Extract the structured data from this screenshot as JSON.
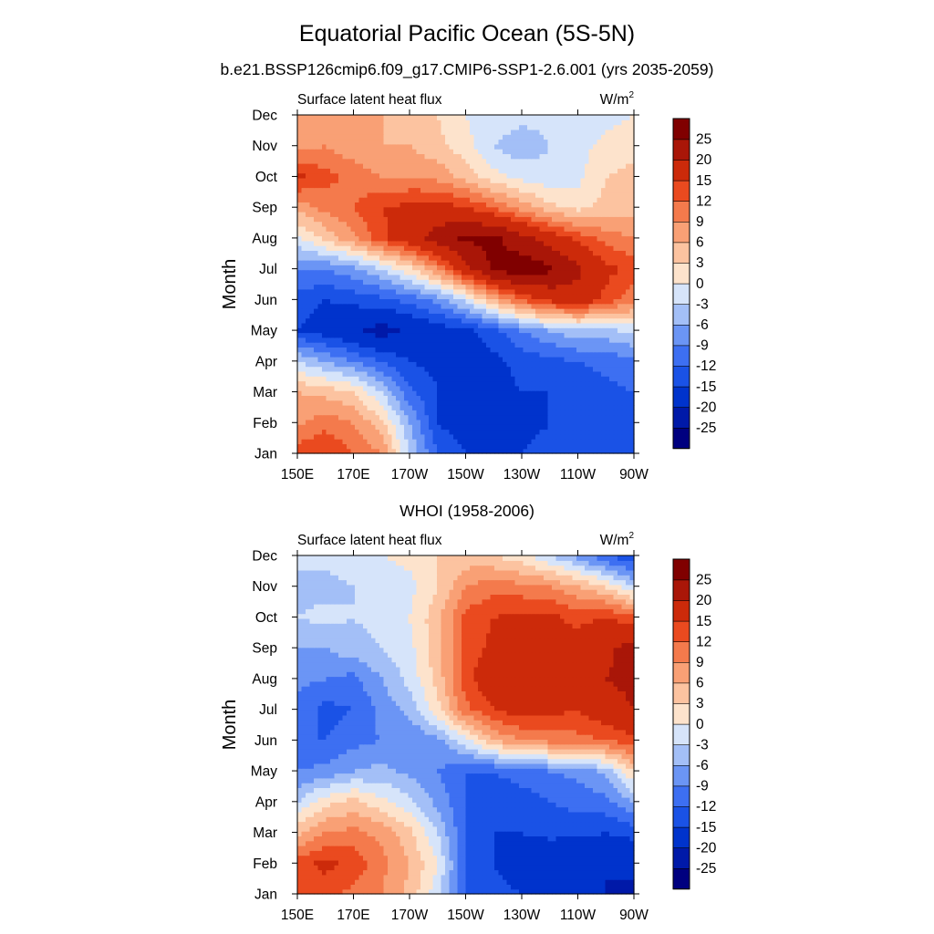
{
  "figure": {
    "title": "Equatorial Pacific Ocean (5S-5N)",
    "subtitle": "b.e21.BSSP126cmip6.f09_g17.CMIP6-SSP1-2.6.001 (yrs 2035-2059)"
  },
  "colors": {
    "palette": [
      "#00007f",
      "#0019a8",
      "#0033cc",
      "#1a52e6",
      "#3d6ff2",
      "#6b95f5",
      "#a3bff7",
      "#d6e4fa",
      "#fde3cc",
      "#fcc3a0",
      "#f9a075",
      "#f47a4c",
      "#ea4a1f",
      "#cc2a0a",
      "#a91608",
      "#800000"
    ]
  },
  "chart_data": [
    {
      "type": "heatmap",
      "title": "",
      "left_label": "Surface latent heat flux",
      "units_label": "W/m",
      "units_superscript": "2",
      "ylabel": "Month",
      "xlabel": "",
      "x_ticks": [
        "150E",
        "170E",
        "170W",
        "150W",
        "130W",
        "110W",
        "90W"
      ],
      "x_lon_range": [
        150,
        270
      ],
      "y_ticks": [
        "Jan",
        "Feb",
        "Mar",
        "Apr",
        "May",
        "Jun",
        "Jul",
        "Aug",
        "Sep",
        "Oct",
        "Nov",
        "Dec"
      ],
      "colorbar_levels": [
        -25,
        -20,
        -15,
        -12,
        -9,
        -6,
        -3,
        0,
        3,
        6,
        9,
        12,
        15,
        20,
        25
      ],
      "colorbar_labels": [
        "-25",
        "-20",
        "-15",
        "-12",
        "-9",
        "-6",
        "-3",
        "0",
        "3",
        "6",
        "9",
        "12",
        "15",
        "20",
        "25"
      ],
      "lon_nodes": [
        150,
        160,
        170,
        180,
        190,
        200,
        210,
        220,
        230,
        240,
        250,
        260,
        270
      ],
      "rows": [
        [
          14,
          15,
          12,
          9,
          -3,
          -12,
          -15,
          -16,
          -15,
          -14,
          -13,
          -14,
          -12
        ],
        [
          8,
          11,
          9,
          4,
          -6,
          -15,
          -17,
          -17,
          -16,
          -15,
          -14,
          -15,
          -14
        ],
        [
          6,
          5,
          3,
          -3,
          -11,
          -15,
          -16,
          -16,
          -15,
          -15,
          -14,
          -13,
          -12
        ],
        [
          -3,
          -6,
          -9,
          -12,
          -15,
          -16,
          -17,
          -16,
          -14,
          -13,
          -12,
          -11,
          -10
        ],
        [
          -15,
          -17,
          -19,
          -22,
          -19,
          -17,
          -16,
          -13,
          -9,
          -6,
          -4,
          -4,
          -2
        ],
        [
          -13,
          -15,
          -14,
          -13,
          -11,
          -8,
          -2,
          6,
          12,
          16,
          18,
          14,
          10
        ],
        [
          -9,
          -9,
          -7,
          -3,
          2,
          9,
          18,
          26,
          28,
          26,
          21,
          16,
          14
        ],
        [
          -1,
          4,
          8,
          14,
          18,
          22,
          26,
          26,
          22,
          18,
          14,
          11,
          9
        ],
        [
          7,
          10,
          12,
          15,
          16,
          17,
          15,
          12,
          8,
          4,
          2,
          4,
          5
        ],
        [
          16,
          13,
          11,
          9,
          9,
          8,
          5,
          1,
          -1,
          -2,
          -1,
          3,
          4
        ],
        [
          8,
          9,
          7,
          6,
          6,
          4,
          1,
          -3,
          -5,
          -3,
          -1,
          1,
          2
        ],
        [
          9,
          8,
          7,
          6,
          4,
          3,
          0,
          -1,
          -2,
          -2,
          -3,
          -1,
          0
        ]
      ]
    },
    {
      "type": "heatmap",
      "title": "WHOI (1958-2006)",
      "left_label": "Surface latent heat flux",
      "units_label": "W/m",
      "units_superscript": "2",
      "ylabel": "Month",
      "xlabel": "",
      "x_ticks": [
        "150E",
        "170E",
        "170W",
        "150W",
        "130W",
        "110W",
        "90W"
      ],
      "x_lon_range": [
        150,
        270
      ],
      "y_ticks": [
        "Jan",
        "Feb",
        "Mar",
        "Apr",
        "May",
        "Jun",
        "Jul",
        "Aug",
        "Sep",
        "Oct",
        "Nov",
        "Dec"
      ],
      "colorbar_levels": [
        -25,
        -20,
        -15,
        -12,
        -9,
        -6,
        -3,
        0,
        3,
        6,
        9,
        12,
        15,
        20,
        25
      ],
      "colorbar_labels": [
        "-25",
        "-20",
        "-15",
        "-12",
        "-9",
        "-6",
        "-3",
        "0",
        "3",
        "6",
        "9",
        "12",
        "15",
        "20",
        "25"
      ],
      "lon_nodes": [
        150,
        160,
        170,
        180,
        190,
        200,
        210,
        220,
        230,
        240,
        250,
        260,
        270
      ],
      "rows": [
        [
          12,
          13,
          11,
          9,
          5,
          -2,
          -12,
          -14,
          -15,
          -16,
          -18,
          -20,
          -22
        ],
        [
          14,
          16,
          14,
          10,
          6,
          0,
          -12,
          -15,
          -17,
          -19,
          -20,
          -20,
          -18
        ],
        [
          5,
          9,
          10,
          8,
          4,
          -3,
          -12,
          -15,
          -15,
          -14,
          -14,
          -15,
          -14
        ],
        [
          -3,
          2,
          4,
          1,
          -2,
          -7,
          -12,
          -15,
          -14,
          -12,
          -11,
          -10,
          -6
        ],
        [
          -9,
          -8,
          -6,
          -5,
          -7,
          -9,
          -12,
          -12,
          -10,
          -9,
          -8,
          -5,
          3
        ],
        [
          -12,
          -12,
          -10,
          -9,
          -9,
          -7,
          -1,
          6,
          9,
          10,
          11,
          12,
          14
        ],
        [
          -10,
          -13,
          -12,
          -8,
          -5,
          2,
          11,
          15,
          17,
          16,
          15,
          18,
          20
        ],
        [
          -8,
          -9,
          -10,
          -6,
          -2,
          4,
          14,
          18,
          19,
          15,
          18,
          20,
          21
        ],
        [
          -6,
          -6,
          -4,
          -3,
          -1,
          5,
          13,
          16,
          18,
          15,
          17,
          19,
          22
        ],
        [
          -3,
          -2,
          -3,
          -2,
          0,
          5,
          13,
          15,
          16,
          16,
          14,
          15,
          13
        ],
        [
          -4,
          -4,
          -3,
          -2,
          -1,
          3,
          9,
          11,
          10,
          9,
          6,
          3,
          -3
        ],
        [
          -2,
          -2,
          -1,
          0,
          1,
          3,
          4,
          3,
          1,
          -3,
          -7,
          -12,
          -15
        ]
      ]
    }
  ]
}
